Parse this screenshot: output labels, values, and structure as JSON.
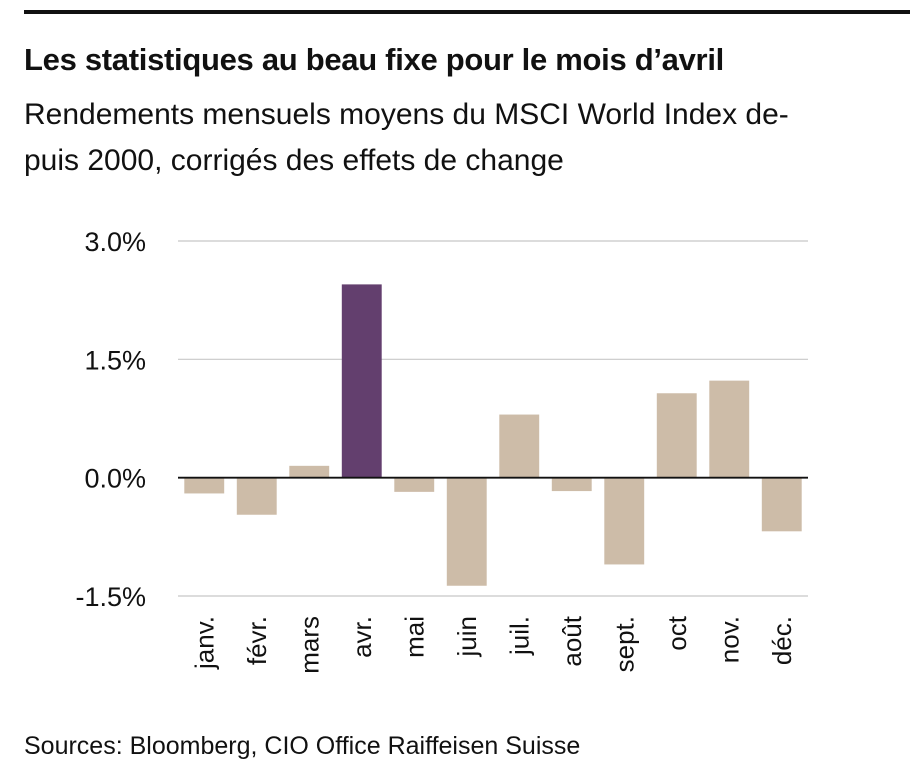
{
  "title": "Les statistiques au beau fixe pour le mois d’avril",
  "subtitle": "Rendements mensuels moyens du MSCI World Index de-\npuis 2000, corrigés des effets de change",
  "source": "Sources: Bloomberg, CIO Office Raiffeisen Suisse",
  "colors": {
    "highlight": "#633f6e",
    "default": "#cdbca8",
    "grid": "#c8c8c8",
    "axis": "#111111"
  },
  "chart_data": {
    "type": "bar",
    "title": "Les statistiques au beau fixe pour le mois d’avril",
    "categories": [
      "janv.",
      "févr.",
      "mars",
      "avr.",
      "mai",
      "juin",
      "juil.",
      "août",
      "sept.",
      "oct",
      "nov.",
      "déc."
    ],
    "values": [
      -0.2,
      -0.47,
      0.15,
      2.45,
      -0.18,
      -1.37,
      0.8,
      -0.17,
      -1.1,
      1.07,
      1.23,
      -0.68
    ],
    "highlight": "avr.",
    "yticks": [
      "3.0%",
      "1.5%",
      "0.0%",
      "-1.5%"
    ],
    "ytick_values": [
      3.0,
      1.5,
      0.0,
      -1.5
    ],
    "ylim": [
      -1.5,
      3.0
    ],
    "grid": true,
    "xlabel": "",
    "ylabel": ""
  }
}
